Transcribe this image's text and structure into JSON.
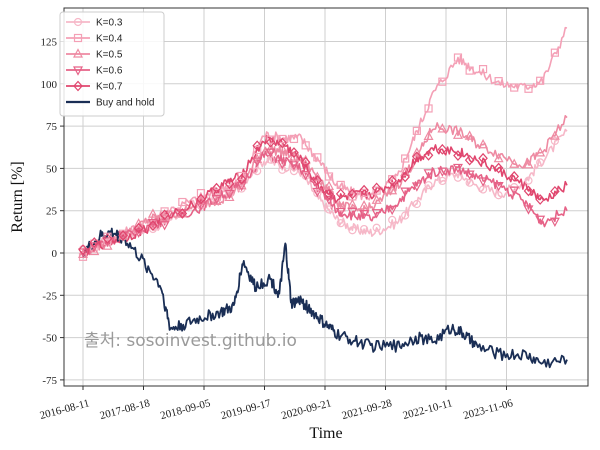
{
  "watermark": "출처: sosoinvest.github.io",
  "chart_data": {
    "type": "line",
    "xlabel": "Time",
    "ylabel": "Return [%]",
    "x_ticks": [
      "2016-08-11",
      "2017-08-18",
      "2018-09-05",
      "2019-09-17",
      "2020-09-21",
      "2021-09-28",
      "2022-10-11",
      "2023-11-06"
    ],
    "x_range": [
      "2016-08-11",
      "2024-08-01"
    ],
    "y_ticks": [
      -75,
      -50,
      -25,
      0,
      25,
      50,
      75,
      100,
      125
    ],
    "ylim": [
      -80,
      143
    ],
    "grid": true,
    "legend_position": "top-left",
    "series": [
      {
        "name": "K=0.3",
        "color": "#f6b8c8",
        "marker": "circle",
        "values": [
          [
            2016.61,
            0
          ],
          [
            2016.9,
            6
          ],
          [
            2017.3,
            11
          ],
          [
            2017.7,
            14
          ],
          [
            2018.0,
            18
          ],
          [
            2018.5,
            30
          ],
          [
            2018.9,
            35
          ],
          [
            2019.2,
            40
          ],
          [
            2019.6,
            55
          ],
          [
            2019.9,
            52
          ],
          [
            2020.2,
            48
          ],
          [
            2020.5,
            32
          ],
          [
            2020.8,
            20
          ],
          [
            2021.1,
            14
          ],
          [
            2021.4,
            12
          ],
          [
            2021.8,
            18
          ],
          [
            2022.1,
            30
          ],
          [
            2022.4,
            42
          ],
          [
            2022.8,
            47
          ],
          [
            2023.1,
            40
          ],
          [
            2023.5,
            35
          ],
          [
            2023.9,
            42
          ],
          [
            2024.2,
            55
          ],
          [
            2024.6,
            72
          ]
        ]
      },
      {
        "name": "K=0.4",
        "color": "#f4a0b6",
        "marker": "square",
        "values": [
          [
            2016.61,
            0
          ],
          [
            2016.9,
            7
          ],
          [
            2017.3,
            12
          ],
          [
            2017.7,
            18
          ],
          [
            2018.0,
            25
          ],
          [
            2018.5,
            32
          ],
          [
            2018.9,
            38
          ],
          [
            2019.2,
            42
          ],
          [
            2019.6,
            70
          ],
          [
            2019.9,
            68
          ],
          [
            2020.2,
            68
          ],
          [
            2020.5,
            55
          ],
          [
            2020.8,
            40
          ],
          [
            2021.1,
            35
          ],
          [
            2021.4,
            33
          ],
          [
            2021.8,
            45
          ],
          [
            2022.1,
            70
          ],
          [
            2022.4,
            95
          ],
          [
            2022.8,
            115
          ],
          [
            2023.1,
            108
          ],
          [
            2023.5,
            100
          ],
          [
            2023.9,
            98
          ],
          [
            2024.2,
            102
          ],
          [
            2024.6,
            133
          ]
        ]
      },
      {
        "name": "K=0.5",
        "color": "#ee8aa2",
        "marker": "triangle-up",
        "values": [
          [
            2016.61,
            0
          ],
          [
            2016.9,
            5
          ],
          [
            2017.3,
            10
          ],
          [
            2017.7,
            20
          ],
          [
            2018.0,
            22
          ],
          [
            2018.5,
            28
          ],
          [
            2018.9,
            32
          ],
          [
            2019.2,
            38
          ],
          [
            2019.6,
            62
          ],
          [
            2019.9,
            60
          ],
          [
            2020.2,
            55
          ],
          [
            2020.5,
            45
          ],
          [
            2020.8,
            30
          ],
          [
            2021.1,
            25
          ],
          [
            2021.4,
            27
          ],
          [
            2021.8,
            40
          ],
          [
            2022.1,
            55
          ],
          [
            2022.4,
            75
          ],
          [
            2022.8,
            72
          ],
          [
            2023.1,
            65
          ],
          [
            2023.5,
            58
          ],
          [
            2023.9,
            52
          ],
          [
            2024.2,
            60
          ],
          [
            2024.6,
            80
          ]
        ]
      },
      {
        "name": "K=0.6",
        "color": "#e66287",
        "marker": "triangle-down",
        "values": [
          [
            2016.61,
            0
          ],
          [
            2016.9,
            6
          ],
          [
            2017.3,
            10
          ],
          [
            2017.7,
            16
          ],
          [
            2018.0,
            20
          ],
          [
            2018.5,
            26
          ],
          [
            2018.9,
            34
          ],
          [
            2019.2,
            40
          ],
          [
            2019.6,
            58
          ],
          [
            2019.9,
            55
          ],
          [
            2020.2,
            50
          ],
          [
            2020.5,
            38
          ],
          [
            2020.8,
            25
          ],
          [
            2021.1,
            22
          ],
          [
            2021.4,
            20
          ],
          [
            2021.8,
            30
          ],
          [
            2022.1,
            40
          ],
          [
            2022.4,
            48
          ],
          [
            2022.8,
            50
          ],
          [
            2023.1,
            45
          ],
          [
            2023.5,
            40
          ],
          [
            2023.9,
            30
          ],
          [
            2024.2,
            18
          ],
          [
            2024.6,
            25
          ]
        ]
      },
      {
        "name": "K=0.7",
        "color": "#e0466e",
        "marker": "diamond",
        "values": [
          [
            2016.61,
            0
          ],
          [
            2016.9,
            5
          ],
          [
            2017.3,
            9
          ],
          [
            2017.7,
            15
          ],
          [
            2018.0,
            22
          ],
          [
            2018.5,
            30
          ],
          [
            2018.9,
            40
          ],
          [
            2019.2,
            45
          ],
          [
            2019.6,
            67
          ],
          [
            2019.9,
            65
          ],
          [
            2020.2,
            55
          ],
          [
            2020.5,
            40
          ],
          [
            2020.8,
            32
          ],
          [
            2021.1,
            34
          ],
          [
            2021.4,
            35
          ],
          [
            2021.8,
            42
          ],
          [
            2022.1,
            55
          ],
          [
            2022.4,
            62
          ],
          [
            2022.8,
            60
          ],
          [
            2023.1,
            55
          ],
          [
            2023.5,
            48
          ],
          [
            2023.9,
            40
          ],
          [
            2024.2,
            30
          ],
          [
            2024.6,
            40
          ]
        ]
      },
      {
        "name": "Buy and hold",
        "color": "#1a2e55",
        "marker": "none",
        "values": [
          [
            2016.61,
            0
          ],
          [
            2016.9,
            10
          ],
          [
            2017.1,
            12
          ],
          [
            2017.3,
            8
          ],
          [
            2017.6,
            -5
          ],
          [
            2017.9,
            -20
          ],
          [
            2018.05,
            -45
          ],
          [
            2018.3,
            -42
          ],
          [
            2018.6,
            -38
          ],
          [
            2018.9,
            -35
          ],
          [
            2019.1,
            -32
          ],
          [
            2019.25,
            -5
          ],
          [
            2019.45,
            -20
          ],
          [
            2019.7,
            -15
          ],
          [
            2019.85,
            -25
          ],
          [
            2019.95,
            5
          ],
          [
            2020.05,
            -30
          ],
          [
            2020.2,
            -28
          ],
          [
            2020.4,
            -35
          ],
          [
            2020.6,
            -42
          ],
          [
            2020.8,
            -48
          ],
          [
            2021.1,
            -52
          ],
          [
            2021.4,
            -55
          ],
          [
            2021.8,
            -55
          ],
          [
            2022.1,
            -50
          ],
          [
            2022.4,
            -52
          ],
          [
            2022.7,
            -44
          ],
          [
            2022.9,
            -48
          ],
          [
            2023.1,
            -55
          ],
          [
            2023.5,
            -60
          ],
          [
            2023.9,
            -60
          ],
          [
            2024.2,
            -65
          ],
          [
            2024.6,
            -63
          ]
        ]
      }
    ]
  }
}
